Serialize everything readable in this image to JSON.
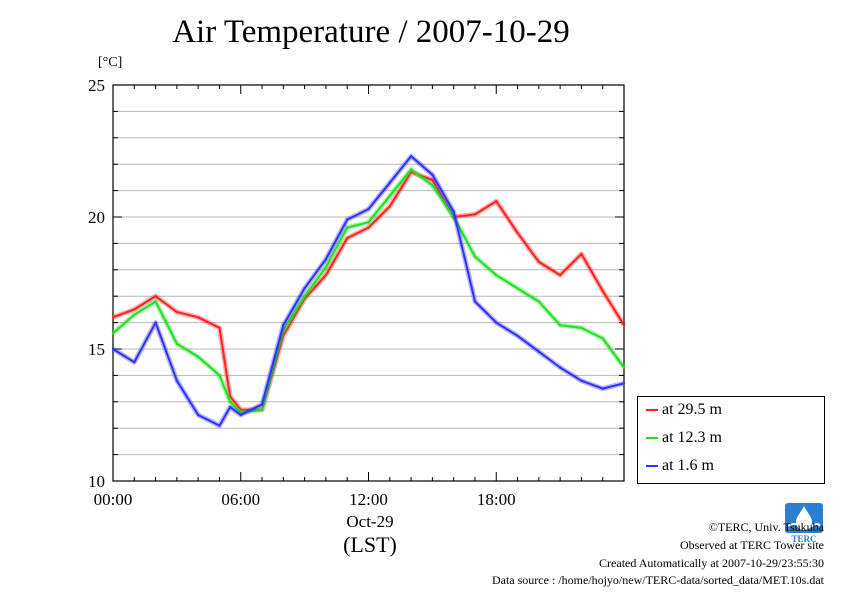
{
  "chart_data": {
    "type": "line",
    "title": "Air Temperature / 2007-10-29",
    "ylabel": "[°C]",
    "xlabel": "Oct-29",
    "xlabel_sub": "(LST)",
    "x_unit": "hours (LST)",
    "xlim": [
      0,
      24
    ],
    "ylim": [
      10,
      25
    ],
    "yticks": [
      10,
      15,
      20,
      25
    ],
    "ytick_labels": [
      "10",
      "15",
      "20",
      "25"
    ],
    "xticks": [
      0,
      6,
      12,
      18
    ],
    "xtick_labels": [
      "00:00",
      "06:00",
      "12:00",
      "18:00"
    ],
    "grid": true,
    "legend_position": "right",
    "x": [
      0,
      1,
      2,
      3,
      4,
      5,
      5.5,
      6,
      7,
      8,
      9,
      10,
      11,
      12,
      13,
      14,
      15,
      16,
      17,
      18,
      19,
      20,
      21,
      22,
      23,
      24
    ],
    "series": [
      {
        "name": "at 29.5 m",
        "color": "#ff2020",
        "values": [
          16.2,
          16.5,
          17.0,
          16.4,
          16.2,
          15.8,
          13.2,
          12.7,
          12.7,
          15.5,
          16.9,
          17.8,
          19.2,
          19.6,
          20.4,
          21.7,
          21.4,
          20.0,
          20.1,
          20.6,
          19.4,
          18.3,
          17.8,
          18.6,
          17.2,
          15.9
        ]
      },
      {
        "name": "at 12.3 m",
        "color": "#20e020",
        "values": [
          15.6,
          16.3,
          16.8,
          15.2,
          14.7,
          14.0,
          13.0,
          12.6,
          12.7,
          15.7,
          17.0,
          18.1,
          19.6,
          19.8,
          20.8,
          21.8,
          21.2,
          20.0,
          18.5,
          17.8,
          17.3,
          16.8,
          15.9,
          15.8,
          15.4,
          14.3
        ]
      },
      {
        "name": "at 1.6 m",
        "color": "#3030ff",
        "values": [
          15.0,
          14.5,
          16.0,
          13.8,
          12.5,
          12.1,
          12.8,
          12.5,
          12.9,
          15.9,
          17.3,
          18.4,
          19.9,
          20.3,
          21.3,
          22.3,
          21.6,
          20.2,
          16.8,
          16.0,
          15.5,
          14.9,
          14.3,
          13.8,
          13.5,
          13.7
        ]
      }
    ]
  },
  "credits": {
    "copyright": "©TERC, Univ. Tsukuba",
    "observed": "Observed at TERC Tower site",
    "created": "Created Automatically at 2007-10-29/23:55:30",
    "source": "Data source : /home/hojyo/new/TERC-data/sorted_data/MET.10s.dat"
  },
  "logo": {
    "text": "TERC",
    "color": "#2a7fd0",
    "icon": "terc-logo"
  }
}
